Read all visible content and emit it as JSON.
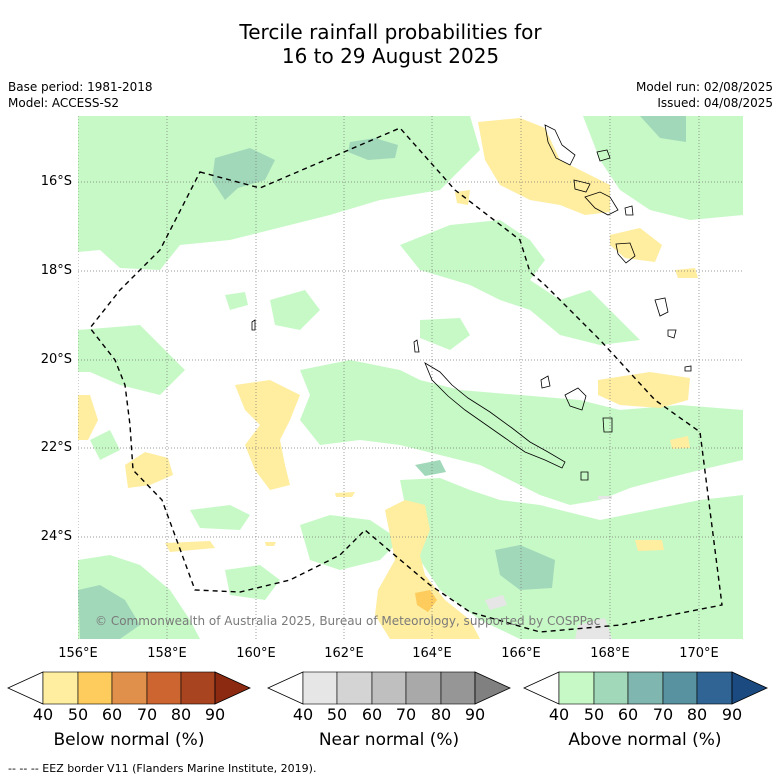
{
  "title_line1": "Tercile rainfall probabilities for",
  "title_line2": "16 to 29 August 2025",
  "base_period": "Base period: 1981-2018",
  "model": "Model: ACCESS-S2",
  "model_run": "Model run: 02/08/2025",
  "issued": "Issued: 04/08/2025",
  "lat_labels": [
    "16°S",
    "18°S",
    "20°S",
    "22°S",
    "24°S"
  ],
  "lon_labels": [
    "156°E",
    "158°E",
    "160°E",
    "162°E",
    "164°E",
    "166°E",
    "168°E",
    "170°E"
  ],
  "copyright": "© Commonwealth of Australia 2025, Bureau of Meteorology, supported by COSPPac",
  "colorbars": [
    {
      "label": "Below normal (%)",
      "ticks": [
        "40",
        "50",
        "60",
        "70",
        "80",
        "90"
      ],
      "colors": [
        "#ffffff",
        "#ffeda0",
        "#fecc5c",
        "#e0904a",
        "#cc6530",
        "#a84420",
        "#8b2a10"
      ]
    },
    {
      "label": "Near normal (%)",
      "ticks": [
        "40",
        "50",
        "60",
        "70",
        "80",
        "90"
      ],
      "colors": [
        "#ffffff",
        "#e6e6e6",
        "#d4d4d4",
        "#bfbfbf",
        "#a9a9a9",
        "#969696",
        "#808080"
      ]
    },
    {
      "label": "Above normal (%)",
      "ticks": [
        "40",
        "50",
        "60",
        "70",
        "80",
        "90"
      ],
      "colors": [
        "#ffffff",
        "#c7f9c7",
        "#a1d8b9",
        "#7fb6b0",
        "#5892a0",
        "#2f6495",
        "#1a4a80"
      ]
    }
  ],
  "footer": "--  --  -- EEZ border V11 (Flanders Marine Institute, 2019)."
}
